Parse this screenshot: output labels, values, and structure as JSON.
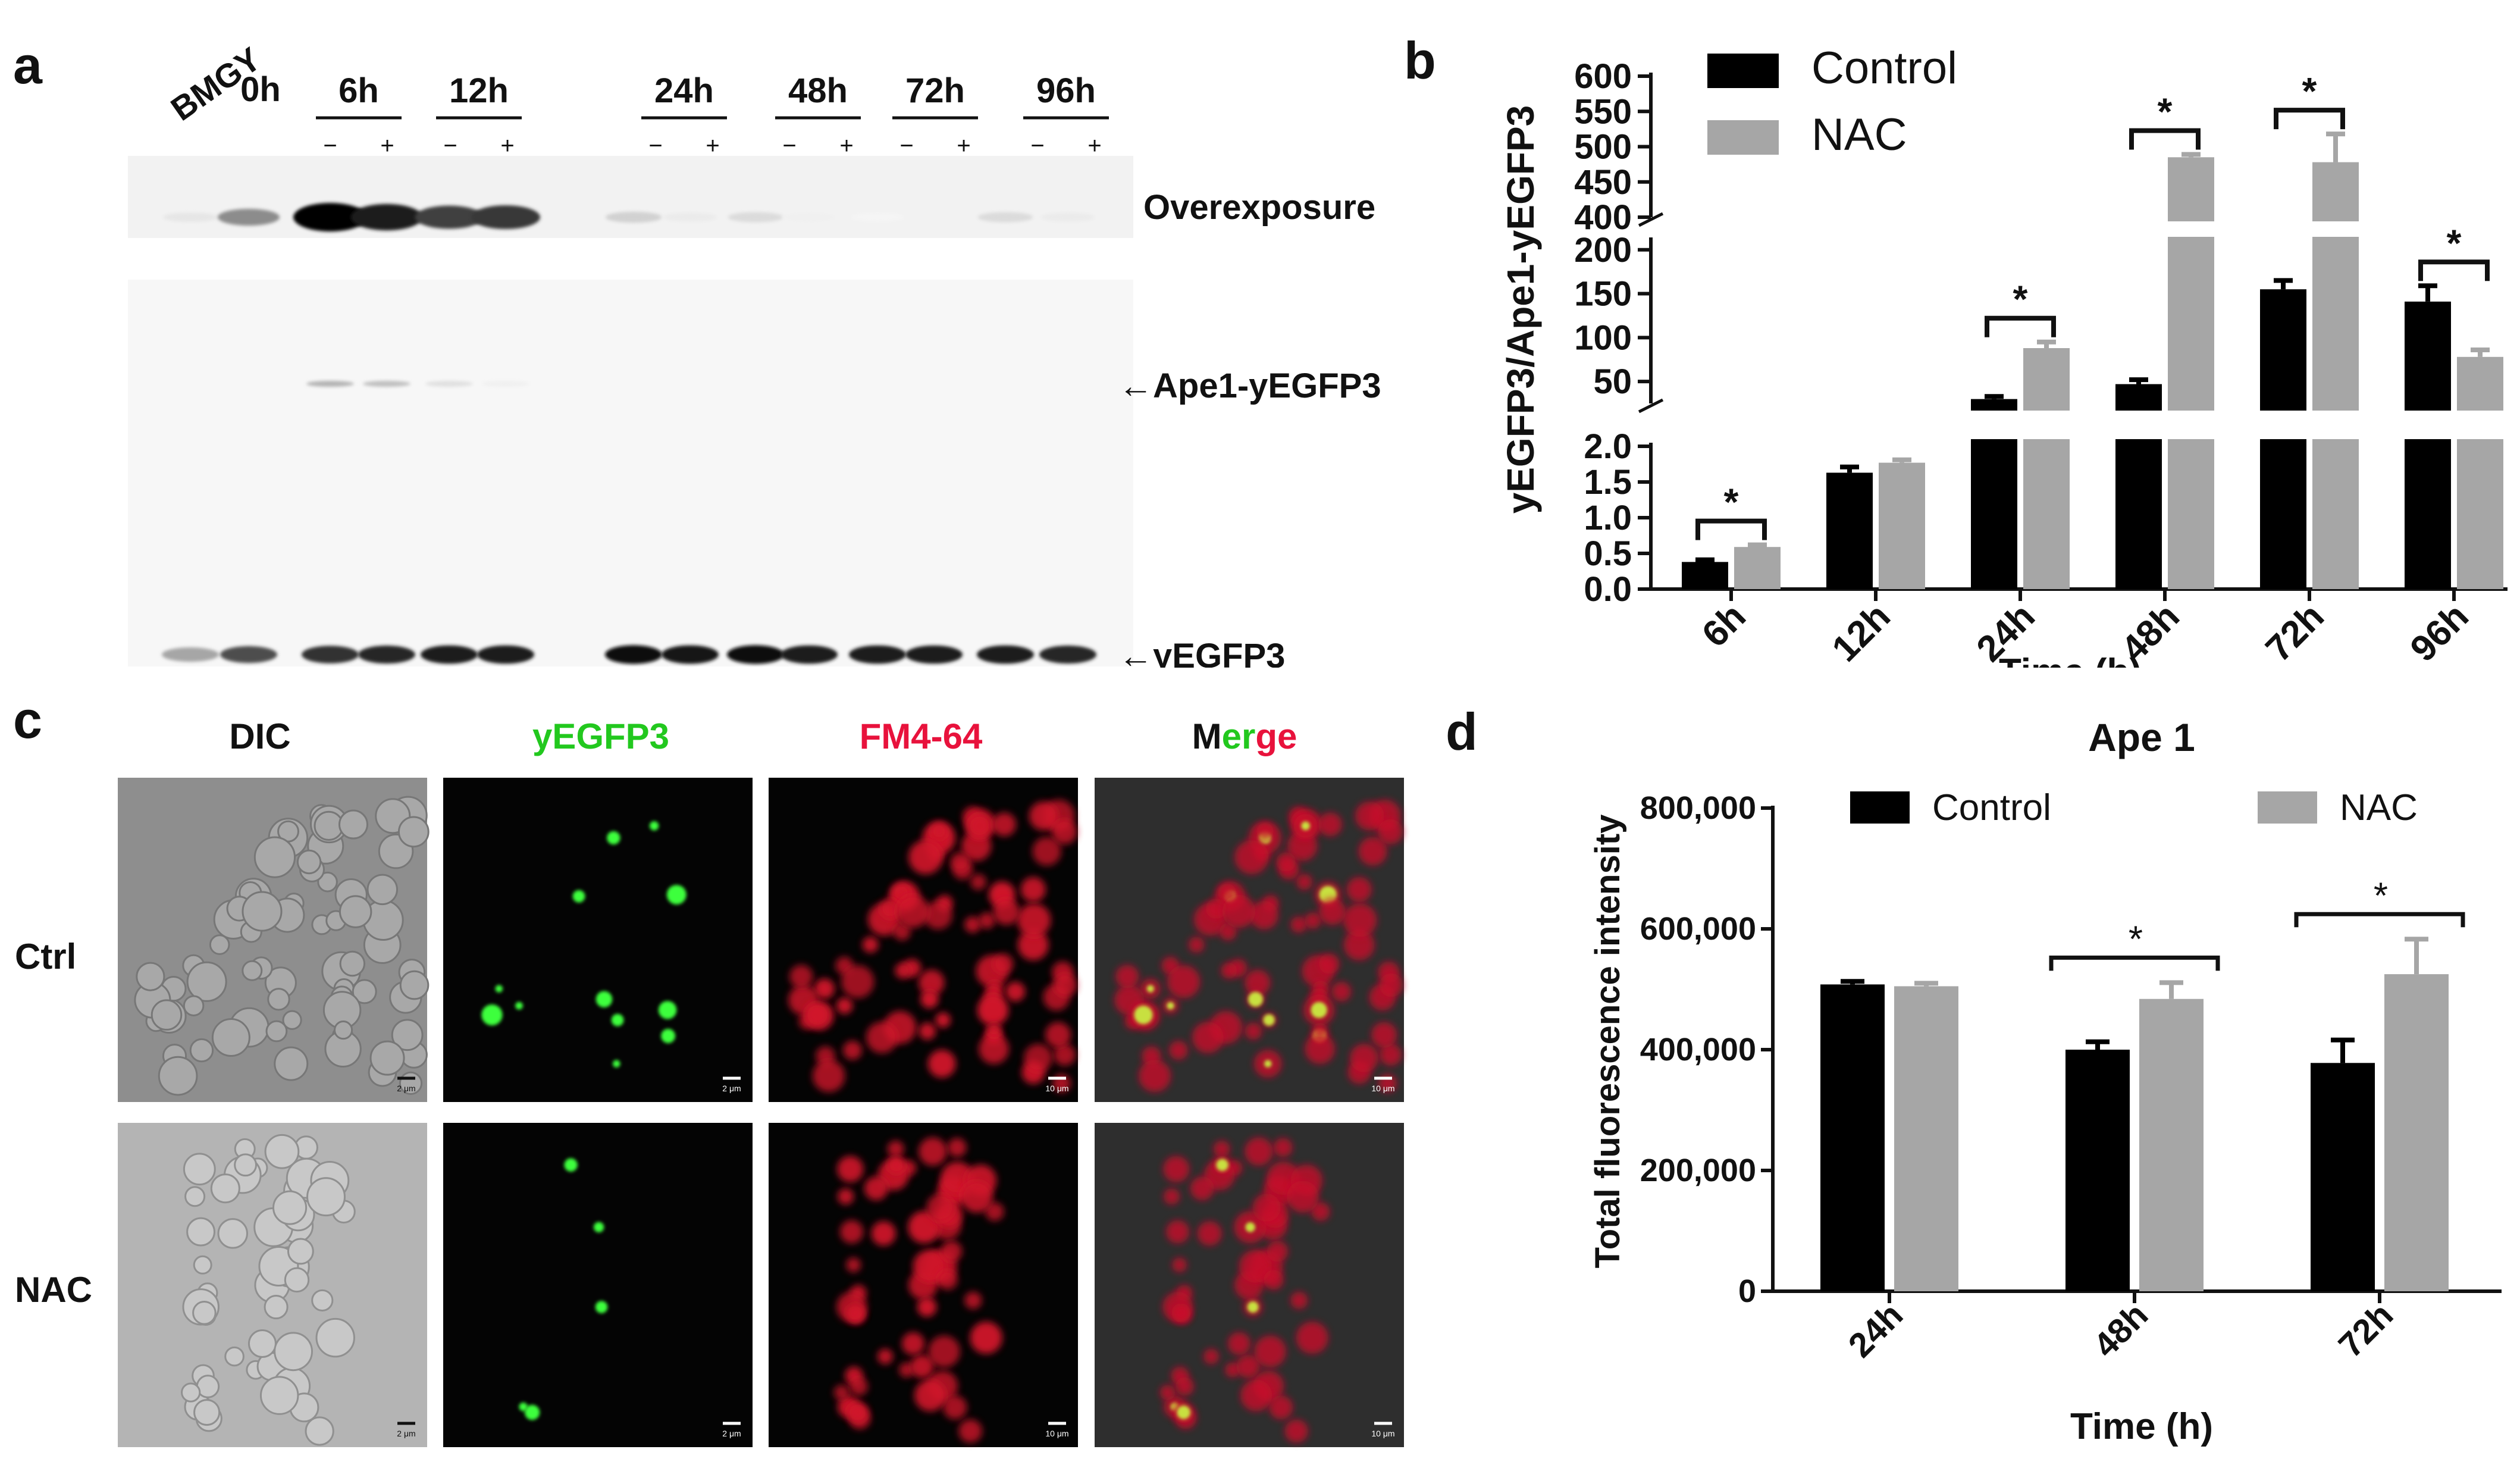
{
  "panel_letters": {
    "a": "a",
    "b": "b",
    "c": "c",
    "d": "d"
  },
  "panel_a": {
    "lane_labels": [
      "BMGY",
      "0h",
      "6h",
      "12h",
      "24h",
      "48h",
      "72h",
      "96h"
    ],
    "treatment_signs": [
      "−",
      "+",
      "−",
      "+",
      "−",
      "+",
      "−",
      "+",
      "−",
      "+",
      "−",
      "+"
    ],
    "blot_labels": {
      "overexposure": "Overexposure",
      "ape1": "←Ape1-yEGFP3",
      "yegfp3": "←yEGFP3"
    },
    "band_intensity": {
      "overexposure": [
        0.1,
        0.45,
        1.0,
        0.9,
        0.75,
        0.78,
        0.18,
        0.08,
        0.14,
        0.06,
        0.04,
        0.05,
        0.14,
        0.08
      ],
      "ape1": [
        0,
        0,
        0.3,
        0.25,
        0.12,
        0.06,
        0,
        0,
        0,
        0,
        0,
        0,
        0,
        0
      ],
      "yegfp3": [
        0.35,
        0.7,
        0.8,
        0.85,
        0.9,
        0.9,
        0.95,
        0.92,
        0.95,
        0.9,
        0.9,
        0.88,
        0.9,
        0.85
      ]
    }
  },
  "panel_c": {
    "columns": [
      "DIC",
      "yEGFP3",
      "FM4-64",
      "Merge"
    ],
    "merge_letters": [
      "M",
      "er",
      "ge"
    ],
    "rows": [
      "Ctrl",
      "NAC"
    ],
    "scale_labels": [
      "2 μm",
      "10 μm"
    ],
    "colors": {
      "green": "#22c81e",
      "red": "#e8123c"
    }
  },
  "chart_data": [
    {
      "type": "bar",
      "panel": "b",
      "categories": [
        "6h",
        "12h",
        "24h",
        "48h",
        "72h",
        "96h"
      ],
      "series": [
        {
          "name": "Control",
          "values": [
            0.38,
            1.63,
            30,
            47,
            155,
            141
          ],
          "errors": [
            0.03,
            0.08,
            3,
            5,
            10,
            18
          ],
          "color": "#000000"
        },
        {
          "name": "NAC",
          "values": [
            0.59,
            1.77,
            88,
            485,
            478,
            78
          ],
          "errors": [
            0.03,
            0.04,
            7,
            4,
            40,
            8
          ],
          "color": "#a6a6a6"
        }
      ],
      "ylabel": "yEGFP3/Ape1-yEGFP3",
      "xlabel": "Time (h)",
      "broken_axis": [
        {
          "range": [
            0,
            2.0
          ],
          "ticks": [
            0.0,
            0.5,
            1.0,
            1.5,
            2.0
          ],
          "tick_labels": [
            "0.0",
            "0.5",
            "1.0",
            "1.5",
            "2.0"
          ]
        },
        {
          "range": [
            25,
            210
          ],
          "ticks": [
            50,
            100,
            150,
            200
          ],
          "tick_labels": [
            "50",
            "100",
            "150",
            "200"
          ]
        },
        {
          "range": [
            400,
            600
          ],
          "ticks": [
            400,
            450,
            500,
            550,
            600
          ],
          "tick_labels": [
            "400",
            "450",
            "500",
            "550",
            "600"
          ]
        }
      ],
      "significance": [
        "6h",
        "24h",
        "48h",
        "72h",
        "96h"
      ],
      "significance_mark": "*",
      "legend_position": "top-left"
    },
    {
      "type": "bar",
      "panel": "d",
      "title": "Ape 1",
      "categories": [
        "24h",
        "48h",
        "72h"
      ],
      "series": [
        {
          "name": "Control",
          "values": [
            508000,
            400000,
            378000
          ],
          "errors": [
            5000,
            13000,
            38000
          ],
          "color": "#000000"
        },
        {
          "name": "NAC",
          "values": [
            505000,
            484000,
            525000
          ],
          "errors": [
            5000,
            27000,
            58000
          ],
          "color": "#a6a6a6"
        }
      ],
      "xlabel": "Time (h)",
      "ylabel": "Total fluorescence intensity",
      "ylim": [
        0,
        800000
      ],
      "ticks": [
        0,
        200000,
        400000,
        600000,
        800000
      ],
      "tick_labels": [
        "0",
        "200,000",
        "400,000",
        "600,000",
        "800,000"
      ],
      "significance": [
        "48h",
        "72h"
      ],
      "significance_mark": "*",
      "legend_position": "top"
    }
  ]
}
